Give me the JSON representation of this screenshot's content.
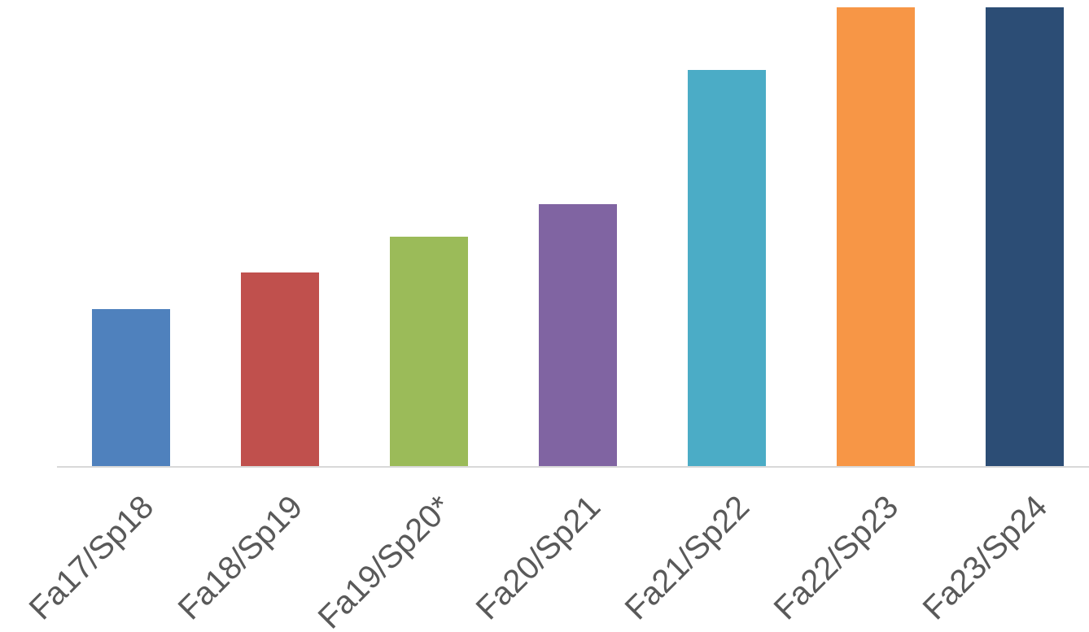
{
  "chart_data": {
    "type": "bar",
    "categories": [
      "Fa17/Sp18",
      "Fa18/Sp19",
      "Fa19/Sp20*",
      "Fa20/Sp21",
      "Fa21/Sp22",
      "Fa22/Sp23",
      "Fa23/Sp24"
    ],
    "values": [
      194,
      239,
      283,
      323,
      488,
      565,
      565
    ],
    "colors": [
      "#4F81BD",
      "#C0504D",
      "#9BBB59",
      "#8064A2",
      "#4BACC6",
      "#F79646",
      "#2C4D75"
    ],
    "title": "",
    "xlabel": "",
    "ylabel": "",
    "ylim": [
      0,
      565
    ],
    "grid": false,
    "legend": "none",
    "axis_color": "#D9D9D9",
    "tick_label_color": "#595959"
  }
}
